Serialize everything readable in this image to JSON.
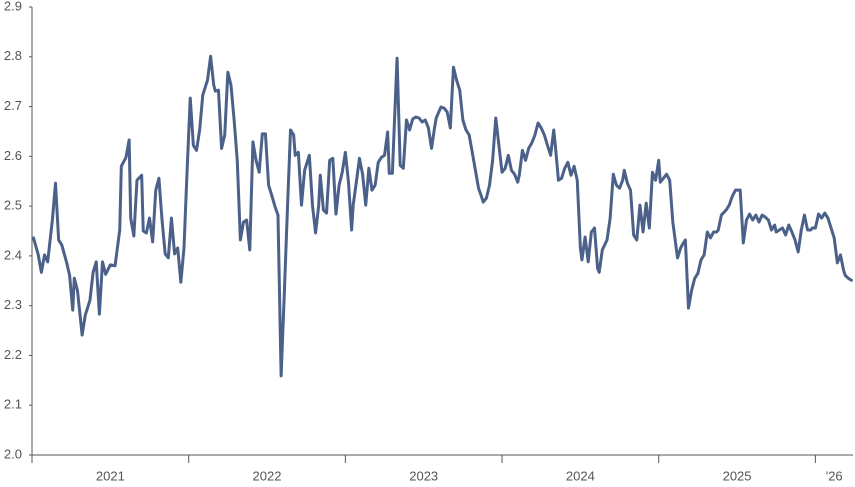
{
  "chart_data": {
    "type": "line",
    "color": "#4c6189",
    "xlim": [
      2021,
      2026.24
    ],
    "xticks": [
      2021,
      2022,
      2023,
      2024,
      2025,
      {
        "value": 2026,
        "label": "'26"
      }
    ],
    "ylim": [
      2,
      2.9
    ],
    "yticks": [
      {
        "value": 2,
        "label": "2.0"
      },
      2.1,
      2.2,
      2.3,
      2.4,
      2.5,
      2.6,
      2.7,
      2.8,
      2.9
    ],
    "grid": false,
    "x": [
      2021.01,
      2021.04,
      2021.06,
      2021.08,
      2021.1,
      2021.11,
      2021.13,
      2021.15,
      2021.17,
      2021.19,
      2021.22,
      2021.24,
      2021.26,
      2021.27,
      2021.29,
      2021.32,
      2021.34,
      2021.37,
      2021.39,
      2021.41,
      2021.43,
      2021.45,
      2021.47,
      2021.5,
      2021.53,
      2021.56,
      2021.57,
      2021.6,
      2021.62,
      2021.63,
      2021.65,
      2021.67,
      2021.7,
      2021.71,
      2021.73,
      2021.75,
      2021.77,
      2021.79,
      2021.81,
      2021.83,
      2021.85,
      2021.87,
      2021.89,
      2021.91,
      2021.93,
      2021.95,
      2021.97,
      2021.99,
      2022.01,
      2022.03,
      2022.05,
      2022.07,
      2022.09,
      2022.12,
      2022.14,
      2022.16,
      2022.17,
      2022.19,
      2022.21,
      2022.23,
      2022.25,
      2022.27,
      2022.29,
      2022.31,
      2022.33,
      2022.35,
      2022.37,
      2022.39,
      2022.41,
      2022.43,
      2022.45,
      2022.47,
      2022.49,
      2022.51,
      2022.53,
      2022.55,
      2022.57,
      2022.59,
      2022.61,
      2022.63,
      2022.65,
      2022.67,
      2022.68,
      2022.7,
      2022.72,
      2022.74,
      2022.77,
      2022.79,
      2022.81,
      2022.83,
      2022.84,
      2022.86,
      2022.88,
      2022.9,
      2022.92,
      2022.94,
      2022.96,
      2022.98,
      2023.0,
      2023.02,
      2023.04,
      2023.05,
      2023.07,
      2023.09,
      2023.11,
      2023.13,
      2023.15,
      2023.17,
      2023.19,
      2023.21,
      2023.23,
      2023.25,
      2023.27,
      2023.28,
      2023.3,
      2023.33,
      2023.35,
      2023.37,
      2023.39,
      2023.41,
      2023.43,
      2023.45,
      2023.47,
      2023.49,
      2023.51,
      2023.53,
      2023.55,
      2023.57,
      2023.58,
      2023.61,
      2023.63,
      2023.65,
      2023.67,
      2023.69,
      2023.71,
      2023.73,
      2023.75,
      2023.77,
      2023.79,
      2023.81,
      2023.83,
      2023.85,
      2023.87,
      2023.88,
      2023.9,
      2023.92,
      2023.94,
      2023.96,
      2023.98,
      2024.0,
      2024.02,
      2024.04,
      2024.06,
      2024.08,
      2024.1,
      2024.11,
      2024.13,
      2024.15,
      2024.17,
      2024.19,
      2024.21,
      2024.23,
      2024.25,
      2024.27,
      2024.29,
      2024.31,
      2024.33,
      2024.34,
      2024.36,
      2024.38,
      2024.4,
      2024.42,
      2024.44,
      2024.46,
      2024.48,
      2024.5,
      2024.51,
      2024.53,
      2024.55,
      2024.57,
      2024.59,
      2024.61,
      2024.62,
      2024.64,
      2024.67,
      2024.69,
      2024.71,
      2024.73,
      2024.75,
      2024.77,
      2024.78,
      2024.8,
      2024.82,
      2024.84,
      2024.86,
      2024.88,
      2024.9,
      2024.92,
      2024.94,
      2024.96,
      2024.98,
      2025.0,
      2025.01,
      2025.03,
      2025.05,
      2025.07,
      2025.09,
      2025.12,
      2025.14,
      2025.15,
      2025.17,
      2025.19,
      2025.21,
      2025.23,
      2025.25,
      2025.27,
      2025.29,
      2025.31,
      2025.33,
      2025.35,
      2025.37,
      2025.38,
      2025.4,
      2025.43,
      2025.45,
      2025.47,
      2025.49,
      2025.51,
      2025.52,
      2025.54,
      2025.56,
      2025.58,
      2025.6,
      2025.62,
      2025.64,
      2025.66,
      2025.68,
      2025.7,
      2025.72,
      2025.74,
      2025.75,
      2025.77,
      2025.79,
      2025.81,
      2025.83,
      2025.85,
      2025.87,
      2025.89,
      2025.91,
      2025.93,
      2025.95,
      2025.97,
      2025.98,
      2026.0,
      2026.02,
      2026.04,
      2026.06,
      2026.08,
      2026.1,
      2026.12,
      2026.14,
      2026.16,
      2026.18,
      2026.19,
      2026.21,
      2026.23
    ],
    "values": [
      2.436,
      2.402,
      2.367,
      2.402,
      2.388,
      2.416,
      2.472,
      2.546,
      2.432,
      2.422,
      2.388,
      2.361,
      2.291,
      2.355,
      2.331,
      2.241,
      2.281,
      2.311,
      2.367,
      2.388,
      2.283,
      2.388,
      2.363,
      2.382,
      2.38,
      2.452,
      2.58,
      2.598,
      2.633,
      2.476,
      2.44,
      2.552,
      2.562,
      2.45,
      2.446,
      2.476,
      2.428,
      2.532,
      2.556,
      2.472,
      2.404,
      2.396,
      2.476,
      2.404,
      2.416,
      2.347,
      2.416,
      2.572,
      2.717,
      2.622,
      2.612,
      2.653,
      2.723,
      2.753,
      2.801,
      2.743,
      2.731,
      2.733,
      2.616,
      2.643,
      2.769,
      2.743,
      2.673,
      2.592,
      2.432,
      2.468,
      2.472,
      2.412,
      2.629,
      2.592,
      2.568,
      2.645,
      2.645,
      2.542,
      2.522,
      2.5,
      2.482,
      2.159,
      2.321,
      2.492,
      2.653,
      2.643,
      2.602,
      2.608,
      2.502,
      2.572,
      2.602,
      2.502,
      2.446,
      2.502,
      2.562,
      2.492,
      2.486,
      2.592,
      2.596,
      2.484,
      2.542,
      2.568,
      2.608,
      2.548,
      2.452,
      2.502,
      2.548,
      2.596,
      2.564,
      2.502,
      2.576,
      2.532,
      2.542,
      2.588,
      2.598,
      2.602,
      2.649,
      2.566,
      2.566,
      2.797,
      2.582,
      2.576,
      2.673,
      2.653,
      2.675,
      2.679,
      2.677,
      2.669,
      2.673,
      2.657,
      2.616,
      2.659,
      2.677,
      2.699,
      2.697,
      2.689,
      2.657,
      2.779,
      2.753,
      2.733,
      2.673,
      2.653,
      2.643,
      2.608,
      2.572,
      2.536,
      2.518,
      2.508,
      2.516,
      2.542,
      2.592,
      2.677,
      2.622,
      2.568,
      2.576,
      2.602,
      2.572,
      2.564,
      2.548,
      2.562,
      2.612,
      2.592,
      2.616,
      2.627,
      2.643,
      2.667,
      2.657,
      2.643,
      2.622,
      2.602,
      2.653,
      2.622,
      2.552,
      2.556,
      2.576,
      2.588,
      2.562,
      2.58,
      2.552,
      2.416,
      2.392,
      2.438,
      2.388,
      2.448,
      2.456,
      2.375,
      2.367,
      2.412,
      2.432,
      2.476,
      2.564,
      2.542,
      2.536,
      2.552,
      2.572,
      2.546,
      2.532,
      2.442,
      2.432,
      2.502,
      2.448,
      2.506,
      2.456,
      2.568,
      2.552,
      2.592,
      2.548,
      2.556,
      2.564,
      2.552,
      2.468,
      2.396,
      2.416,
      2.422,
      2.432,
      2.295,
      2.331,
      2.355,
      2.365,
      2.392,
      2.402,
      2.448,
      2.436,
      2.448,
      2.448,
      2.452,
      2.482,
      2.492,
      2.502,
      2.52,
      2.532,
      2.532,
      2.532,
      2.426,
      2.472,
      2.484,
      2.472,
      2.482,
      2.468,
      2.482,
      2.478,
      2.472,
      2.452,
      2.462,
      2.448,
      2.452,
      2.456,
      2.442,
      2.462,
      2.448,
      2.432,
      2.408,
      2.452,
      2.482,
      2.452,
      2.452,
      2.456,
      2.456,
      2.484,
      2.476,
      2.486,
      2.476,
      2.456,
      2.436,
      2.386,
      2.402,
      2.371,
      2.361,
      2.355,
      2.351
    ]
  }
}
